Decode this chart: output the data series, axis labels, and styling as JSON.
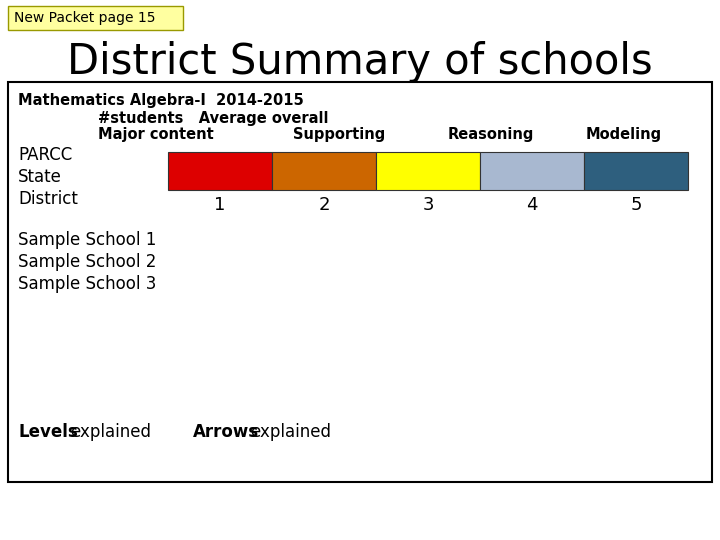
{
  "page_label": "New Packet page 15",
  "page_label_bg": "#ffffa0",
  "main_title": "District Summary of schools",
  "bar_colors": [
    "#dd0000",
    "#cc6600",
    "#ffff00",
    "#a8b8d0",
    "#2e5f7e"
  ],
  "district_numbers": [
    "1",
    "2",
    "3",
    "4",
    "5"
  ],
  "school_lines": [
    "Sample School 1",
    "Sample School 2",
    "Sample School 3"
  ],
  "background": "#ffffff",
  "box_border": "#000000"
}
